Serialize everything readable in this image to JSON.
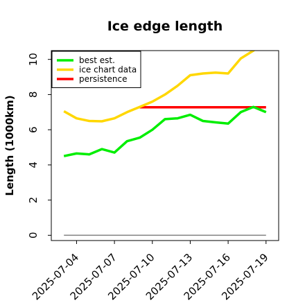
{
  "chart_data": {
    "type": "line",
    "title": "Ice edge length",
    "xlabel": "",
    "ylabel": "Length (1000km)",
    "x": [
      "2025-07-03",
      "2025-07-04",
      "2025-07-05",
      "2025-07-06",
      "2025-07-07",
      "2025-07-08",
      "2025-07-09",
      "2025-07-10",
      "2025-07-11",
      "2025-07-12",
      "2025-07-13",
      "2025-07-14",
      "2025-07-15",
      "2025-07-16",
      "2025-07-17",
      "2025-07-18",
      "2025-07-19"
    ],
    "x_ticks": [
      "2025-07-04",
      "2025-07-07",
      "2025-07-10",
      "2025-07-13",
      "2025-07-16",
      "2025-07-19"
    ],
    "y_ticks": [
      0,
      2,
      4,
      6,
      8,
      10
    ],
    "ylim": [
      -0.3,
      10.5
    ],
    "xlim": [
      "2025-07-02",
      "2025-07-20"
    ],
    "grid": false,
    "legend_position": "top-left",
    "series": [
      {
        "name": "best est.",
        "color": "#00ee00",
        "values": [
          4.5,
          4.65,
          4.6,
          4.9,
          4.7,
          5.35,
          5.55,
          6.0,
          6.6,
          6.65,
          6.85,
          6.5,
          6.42,
          6.35,
          7.0,
          7.3,
          7.0
        ]
      },
      {
        "name": "ice chart data",
        "color": "#ffd700",
        "values": [
          7.05,
          6.65,
          6.5,
          6.48,
          6.65,
          7.0,
          7.3,
          7.6,
          8.0,
          8.5,
          9.1,
          9.2,
          9.25,
          9.2,
          10.05,
          10.5,
          11.0
        ]
      },
      {
        "name": "persistence",
        "color": "#ff0000",
        "values": [
          null,
          null,
          null,
          null,
          null,
          null,
          7.28,
          7.28,
          7.28,
          7.28,
          7.28,
          7.28,
          7.28,
          7.28,
          7.28,
          7.28,
          7.28
        ]
      },
      {
        "color": "#808080",
        "values": [
          0,
          0,
          0,
          0,
          0,
          0,
          0,
          0,
          0,
          0,
          0,
          0,
          0,
          0,
          0,
          0,
          0
        ]
      }
    ]
  }
}
